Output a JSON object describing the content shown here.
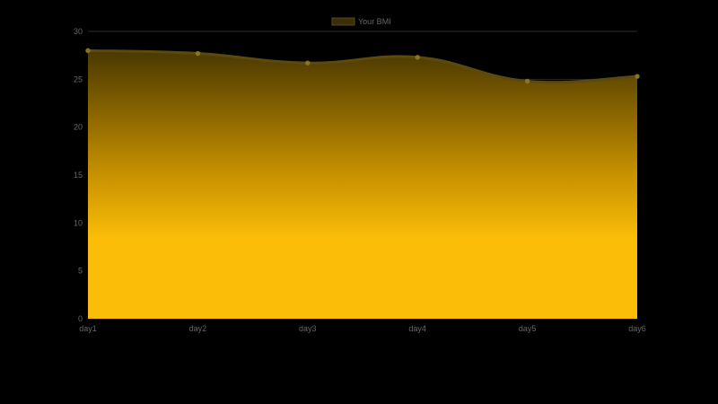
{
  "chart_data": {
    "type": "area",
    "categories": [
      "day1",
      "day2",
      "day3",
      "day4",
      "day5",
      "day6"
    ],
    "series": [
      {
        "name": "Your BMI",
        "values": [
          28.0,
          27.7,
          26.7,
          27.3,
          24.8,
          25.3
        ]
      }
    ],
    "ylim": [
      0,
      30
    ],
    "yticks": [
      0,
      5,
      10,
      15,
      20,
      25,
      30
    ],
    "grid": true,
    "legend": "top-center",
    "title": "",
    "xlabel": "",
    "ylabel": ""
  },
  "colors": {
    "background": "#000000",
    "fill_top": "#4a3800",
    "fill_mid": "#c48f00",
    "fill_bottom": "#fbbd08",
    "line": "#5a4a10",
    "point": "#8a7420",
    "grid": "#2a2a2a",
    "legend_box": "#3a2e0a",
    "legend_border": "#5a4a10",
    "text": "#666666"
  }
}
